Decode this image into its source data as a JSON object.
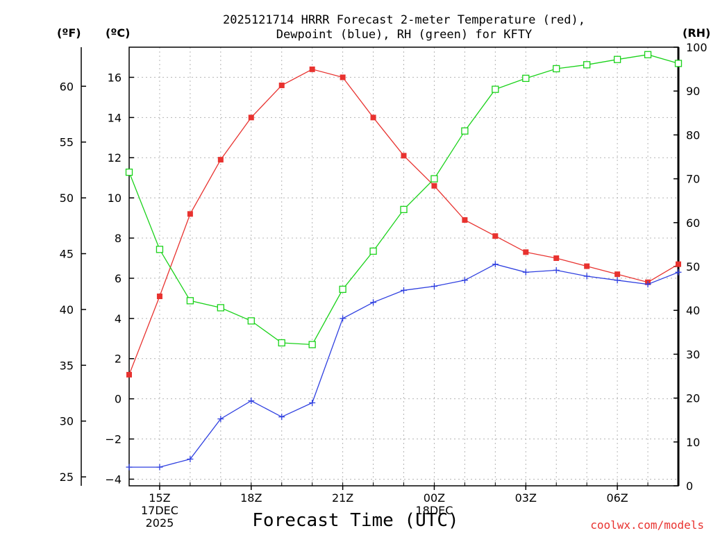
{
  "title_line1": "2025121714 HRRR Forecast 2-meter Temperature (red),",
  "title_line2": "Dewpoint (blue), RH (green) for KFTY",
  "credit": "coolwx.com/models",
  "chart_data": {
    "type": "line",
    "title": "2025121714 HRRR Forecast 2-meter Temperature (red), Dewpoint (blue), RH (green) for KFTY",
    "xlabel": "Forecast Time (UTC)",
    "x": [
      "14Z",
      "15Z",
      "16Z",
      "17Z",
      "18Z",
      "19Z",
      "20Z",
      "21Z",
      "22Z",
      "23Z",
      "00Z",
      "01Z",
      "02Z",
      "03Z",
      "04Z",
      "05Z",
      "06Z",
      "07Z",
      "08Z"
    ],
    "x_tick_labels": [
      {
        "index": 1,
        "lines": [
          "15Z",
          "17DEC",
          "2025"
        ]
      },
      {
        "index": 4,
        "lines": [
          "18Z"
        ]
      },
      {
        "index": 7,
        "lines": [
          "21Z"
        ]
      },
      {
        "index": 10,
        "lines": [
          "00Z",
          "18DEC"
        ]
      },
      {
        "index": 13,
        "lines": [
          "03Z"
        ]
      },
      {
        "index": 16,
        "lines": [
          "06Z"
        ]
      }
    ],
    "left_axis_f": {
      "unit_label": "(ºF)",
      "range": [
        24.2,
        63.5
      ],
      "ticks": [
        25,
        30,
        35,
        40,
        45,
        50,
        55,
        60
      ]
    },
    "left_axis_c": {
      "unit_label": "(ºC)",
      "range": [
        -4.33,
        17.5
      ],
      "ticks": [
        -4,
        -2,
        0,
        2,
        4,
        6,
        8,
        10,
        12,
        14,
        16
      ]
    },
    "right_axis_rh": {
      "unit_label": "(RH)",
      "range": [
        0,
        100
      ],
      "ticks": [
        0,
        10,
        20,
        30,
        40,
        50,
        60,
        70,
        80,
        90,
        100
      ]
    },
    "grid": true,
    "series": [
      {
        "name": "Temperature",
        "axis": "C",
        "color": "#e8322f",
        "marker": "filled-square",
        "values": [
          1.2,
          5.1,
          9.2,
          11.9,
          14.0,
          15.6,
          16.4,
          16.0,
          14.0,
          12.1,
          10.6,
          8.9,
          8.1,
          7.3,
          7.0,
          6.6,
          6.2,
          5.8,
          6.7
        ]
      },
      {
        "name": "Dewpoint",
        "axis": "C",
        "color": "#2e3fe0",
        "marker": "plus",
        "values": [
          -3.4,
          -3.4,
          -3.0,
          -1.0,
          -0.1,
          -0.9,
          -0.2,
          4.0,
          4.8,
          5.4,
          5.6,
          5.9,
          6.7,
          6.3,
          6.4,
          6.1,
          5.9,
          5.7,
          6.3
        ]
      },
      {
        "name": "RH",
        "axis": "RH",
        "color": "#19d219",
        "marker": "open-square",
        "values": [
          71.5,
          53.9,
          42.2,
          40.6,
          37.6,
          32.6,
          32.2,
          44.8,
          53.5,
          63.0,
          70.0,
          80.9,
          90.4,
          92.9,
          95.1,
          96.0,
          97.2,
          98.3,
          96.3
        ]
      }
    ]
  }
}
